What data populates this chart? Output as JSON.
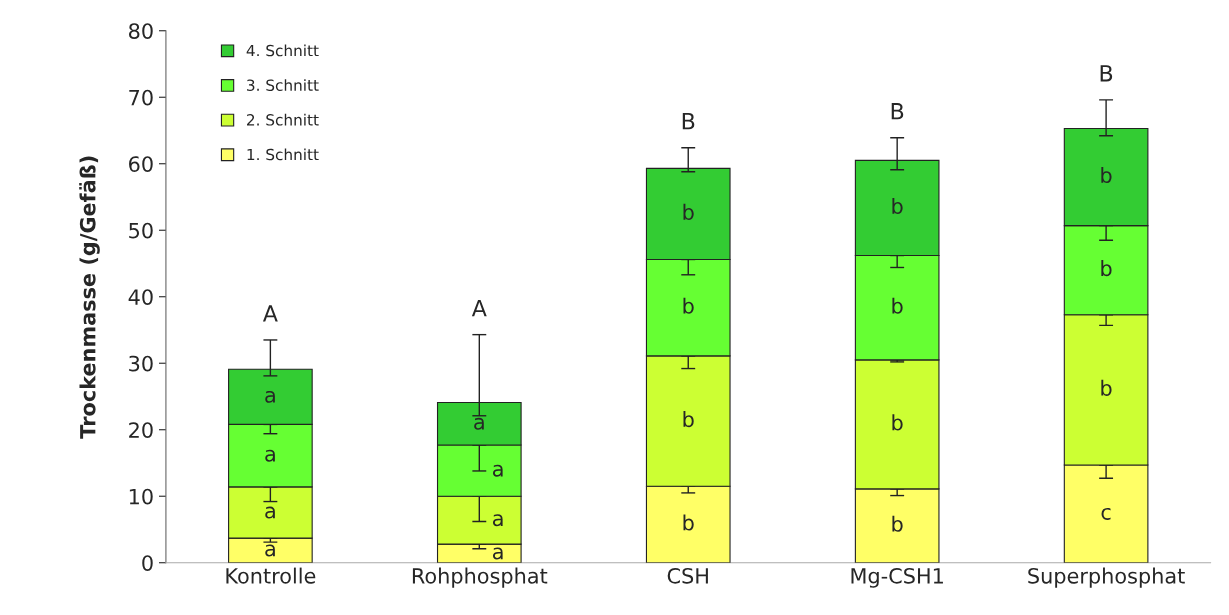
{
  "chart_data": {
    "type": "bar",
    "stacked": true,
    "ylabel": "Trockenmasse (g/Gefäß)",
    "categories": [
      "Kontrolle",
      "Rohphosphat",
      "CSH",
      "Mg-CSH1",
      "Superphosphat"
    ],
    "series": [
      {
        "name": "1. Schnitt",
        "color": "#ffff66",
        "values": [
          3.7,
          2.8,
          11.5,
          11.1,
          14.7
        ],
        "errors": [
          [
            3.1,
            3.7
          ],
          [
            2.1,
            2.8
          ],
          [
            10.5,
            11.5
          ],
          [
            10.1,
            11.1
          ],
          [
            12.7,
            14.7
          ]
        ],
        "value_labels": [
          "a",
          "a",
          "b",
          "b",
          "c"
        ]
      },
      {
        "name": "2. Schnitt",
        "color": "#ccff33",
        "values": [
          7.7,
          7.2,
          19.6,
          19.4,
          22.6
        ],
        "errors": [
          [
            9.2,
            11.4
          ],
          [
            6.2,
            10.0
          ],
          [
            29.2,
            31.1
          ],
          [
            30.2,
            30.5
          ],
          [
            35.7,
            37.3
          ]
        ],
        "value_labels": [
          "a",
          "a",
          "b",
          "b",
          "b"
        ]
      },
      {
        "name": "3. Schnitt",
        "color": "#66ff33",
        "values": [
          9.4,
          7.7,
          14.5,
          15.7,
          13.4
        ],
        "errors": [
          [
            19.4,
            20.8
          ],
          [
            13.8,
            17.7
          ],
          [
            43.3,
            45.6
          ],
          [
            44.4,
            46.2
          ],
          [
            48.5,
            50.7
          ]
        ],
        "value_labels": [
          "a",
          "a",
          "b",
          "b",
          "b"
        ]
      },
      {
        "name": "4. Schnitt",
        "color": "#33cc33",
        "values": [
          8.3,
          6.4,
          13.7,
          14.3,
          14.6
        ],
        "errors": [
          [
            28.1,
            33.5
          ],
          [
            22.1,
            34.3
          ],
          [
            58.8,
            62.4
          ],
          [
            59.1,
            63.9
          ],
          [
            64.2,
            69.6
          ]
        ],
        "value_labels": [
          "a",
          "a",
          "b",
          "b",
          "b"
        ]
      }
    ],
    "annotations": [
      "A",
      "A",
      "B",
      "B",
      "B"
    ],
    "ylim": [
      0,
      80
    ],
    "yticks": [
      0,
      10,
      20,
      30,
      40,
      50,
      60,
      70,
      80
    ],
    "legend": "top left",
    "grid": false
  }
}
